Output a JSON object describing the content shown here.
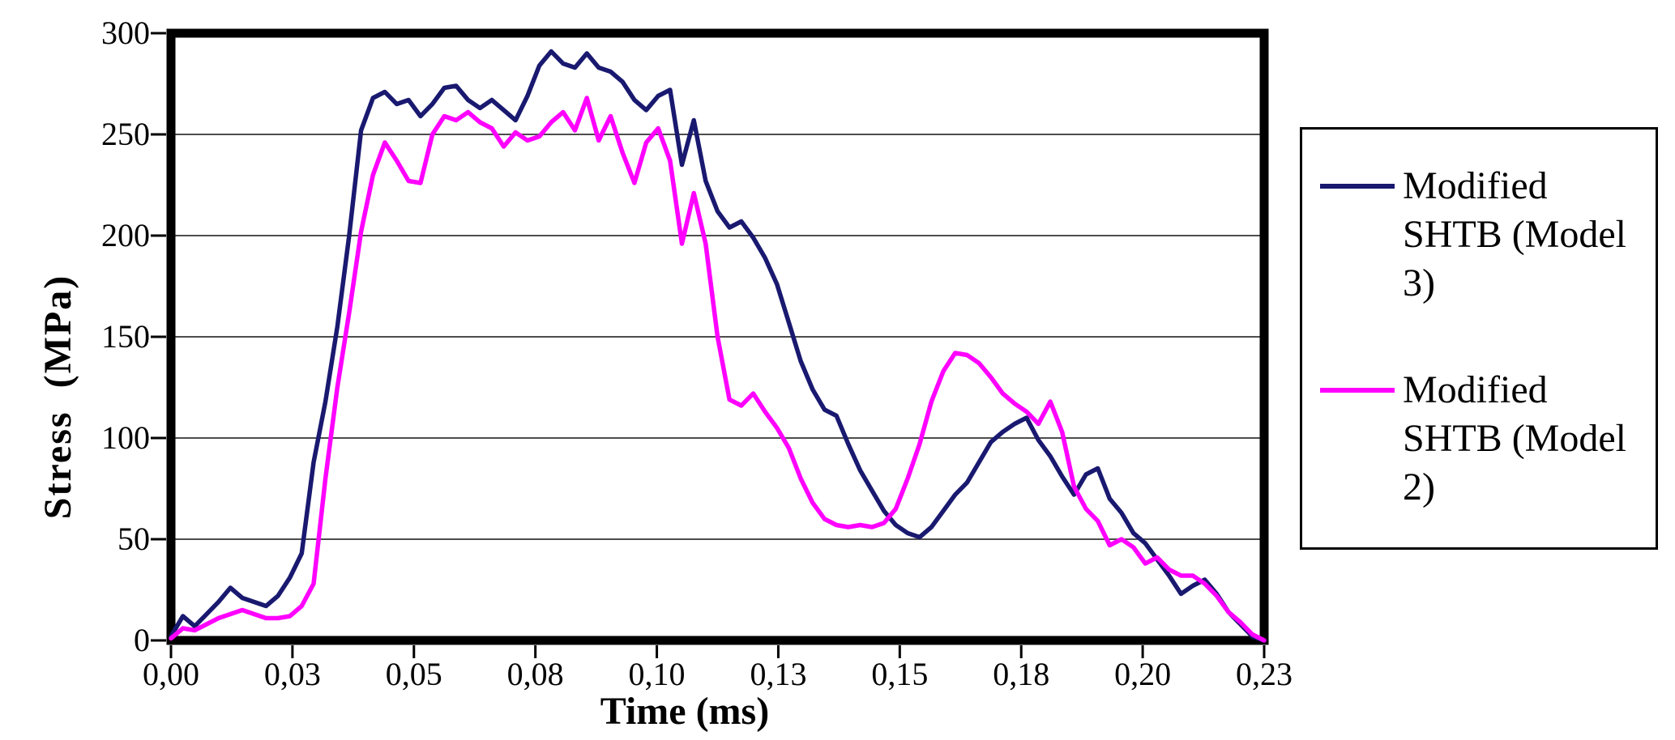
{
  "chart_data": {
    "type": "line",
    "title": "",
    "xlabel": "Time (ms)",
    "ylabel": "Stress  (MPa)",
    "xlim": [
      0,
      0.225
    ],
    "ylim": [
      0,
      300
    ],
    "grid": "horizontal",
    "legend_position": "right",
    "x_ticks": [
      {
        "value": 0,
        "label": "0,00"
      },
      {
        "value": 0.025,
        "label": "0,03"
      },
      {
        "value": 0.05,
        "label": "0,05"
      },
      {
        "value": 0.075,
        "label": "0,08"
      },
      {
        "value": 0.1,
        "label": "0,10"
      },
      {
        "value": 0.125,
        "label": "0,13"
      },
      {
        "value": 0.15,
        "label": "0,15"
      },
      {
        "value": 0.175,
        "label": "0,18"
      },
      {
        "value": 0.2,
        "label": "0,20"
      },
      {
        "value": 0.225,
        "label": "0,23"
      }
    ],
    "y_ticks": [
      {
        "value": 0,
        "label": "0"
      },
      {
        "value": 50,
        "label": "50"
      },
      {
        "value": 100,
        "label": "100"
      },
      {
        "value": 150,
        "label": "150"
      },
      {
        "value": 200,
        "label": "200"
      },
      {
        "value": 250,
        "label": "250"
      },
      {
        "value": 300,
        "label": "300"
      }
    ],
    "y_gridlines": [
      50,
      100,
      150,
      200,
      250
    ],
    "time_ms": [
      0,
      0.00245,
      0.00489,
      0.00734,
      0.00978,
      0.01223,
      0.01467,
      0.01712,
      0.01957,
      0.02201,
      0.02446,
      0.0269,
      0.02935,
      0.03179,
      0.03424,
      0.03668,
      0.03913,
      0.04158,
      0.04402,
      0.04647,
      0.04891,
      0.05136,
      0.0538,
      0.05625,
      0.0587,
      0.06114,
      0.06359,
      0.06603,
      0.06848,
      0.07092,
      0.07337,
      0.07582,
      0.07826,
      0.08071,
      0.08315,
      0.0856,
      0.08804,
      0.09049,
      0.09293,
      0.09538,
      0.09783,
      0.10027,
      0.10272,
      0.10516,
      0.10761,
      0.11005,
      0.1125,
      0.11495,
      0.11739,
      0.11984,
      0.12228,
      0.12473,
      0.12717,
      0.12962,
      0.13207,
      0.13451,
      0.13696,
      0.1394,
      0.14185,
      0.14429,
      0.14674,
      0.14918,
      0.15163,
      0.15408,
      0.15652,
      0.15897,
      0.16141,
      0.16386,
      0.1663,
      0.16875,
      0.1712,
      0.17364,
      0.17609,
      0.17853,
      0.18098,
      0.18342,
      0.18587,
      0.18832,
      0.19076,
      0.19321,
      0.19565,
      0.1981,
      0.20054,
      0.20299,
      0.20543,
      0.20788,
      0.21033,
      0.21277,
      0.21522,
      0.21766,
      0.22011,
      0.22255,
      0.225
    ],
    "series": [
      {
        "name": "Modified SHTB (Model 3)",
        "color": "#191970",
        "stress_mpa": [
          2,
          12,
          7,
          13,
          19,
          26,
          21,
          19,
          17,
          22,
          31,
          43,
          88,
          118,
          155,
          200,
          252,
          268,
          271,
          265,
          267,
          259,
          265,
          273,
          274,
          267,
          263,
          267,
          262,
          257,
          269,
          284,
          291,
          285,
          283,
          290,
          283,
          281,
          276,
          267,
          262,
          269,
          272,
          235,
          257,
          227,
          212,
          204,
          207,
          199,
          189,
          176,
          157,
          138,
          124,
          114,
          111,
          97,
          84,
          74,
          64,
          57,
          53,
          51,
          56,
          64,
          72,
          78,
          88,
          98,
          103,
          107,
          110,
          99,
          91,
          81,
          72,
          82,
          85,
          70,
          63,
          53,
          48,
          40,
          32,
          23,
          27,
          30,
          23,
          14,
          8,
          2,
          0
        ]
      },
      {
        "name": "Modified SHTB (Model 2)",
        "color": "#FF00FF",
        "stress_mpa": [
          1,
          6,
          5,
          8,
          11,
          13,
          15,
          13,
          11,
          11,
          12,
          17,
          28,
          80,
          125,
          162,
          202,
          230,
          246,
          237,
          227,
          226,
          250,
          259,
          257,
          261,
          256,
          253,
          244,
          251,
          247,
          249,
          256,
          261,
          252,
          268,
          247,
          259,
          241,
          226,
          246,
          253,
          237,
          196,
          221,
          196,
          150,
          119,
          116,
          122,
          113,
          105,
          95,
          80,
          68,
          60,
          57,
          56,
          57,
          56,
          58,
          65,
          80,
          97,
          118,
          133,
          142,
          141,
          137,
          130,
          122,
          117,
          113,
          107,
          118,
          103,
          76,
          65,
          59,
          47,
          50,
          46,
          38,
          41,
          35,
          32,
          32,
          28,
          22,
          14,
          9,
          3,
          0
        ]
      }
    ]
  },
  "colors": {
    "background": "#ffffff",
    "frame": "#000000",
    "gridline": "#4d4d4d",
    "text": "#000000",
    "series_model3": "#191970",
    "series_model2": "#FF00FF"
  }
}
